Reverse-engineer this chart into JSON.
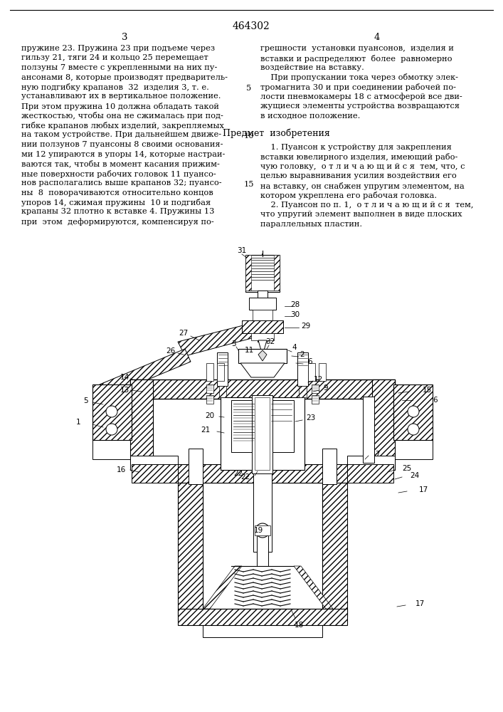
{
  "bg_color": "#ffffff",
  "text_color": "#000000",
  "page_num": "464302",
  "col3": "3",
  "col4": "4",
  "line5": "5",
  "line10": "10",
  "line15": "15",
  "left_para": [
    "пружине 23. Пружина 23 при подъеме через",
    "гильзу 21, тяги 24 и кольцо 25 перемещает",
    "ползуны 7 вместе с укрепленными на них пу-",
    "ансонами 8, которые производят предваритель-",
    "ную подгибку крапанов  32  изделия 3, т. е.",
    "устанавливают их в вертикальное положение.",
    "При этом пружина 10 должна обладать такой",
    "жесткостью, чтобы она не сжималась при под-",
    "гибке крапанов любых изделий, закрепляемых",
    "на таком устройстве. При дальнейшем движе-",
    "нии ползунов 7 пуансоны 8 своими основания-",
    "ми 12 упираются в упоры 14, которые настраи-",
    "ваются так, чтобы в момент касания прижим-",
    "ные поверхности рабочих головок 11 пуансо-",
    "нов располагались выше крапанов 32; пуансо-",
    "ны  8  поворачиваются относительно концов",
    "упоров 14, сжимая пружины  10 и подгибая",
    "крапаны 32 плотно к вставке 4. Пружины 13",
    "при  этом  деформируются, компенсируя по-"
  ],
  "right_upper_para": [
    "грешности  установки пуансонов,  изделия и",
    "вставки и распределяют  более  равномерно",
    "воздействие на вставку.",
    "    При пропускании тока через обмотку элек-",
    "тромагнита 30 и при соединении рабочей по-",
    "лости пневмокамеры 18 с атмосферой все дви-",
    "жущиеся элементы устройства возвращаются",
    "в исходное положение."
  ],
  "subject_heading": "Предмет  изобретения",
  "right_lower_para": [
    "    1. Пуансон к устройству для закрепления",
    "вставки ювелирного изделия, имеющий рабо-",
    "чую головку,  о т л и ч а ю щ и й с я  тем, что, с",
    "целью выравнивания усилия воздействия его",
    "на вставку, он снабжен упругим элементом, на",
    "котором укреплена его рабочая головка.",
    "    2. Пуансон по п. 1,  о т л и ч а ю щ и й с я  тем,",
    "что упругий элемент выполнен в виде плоских",
    "параллельных пластин."
  ]
}
